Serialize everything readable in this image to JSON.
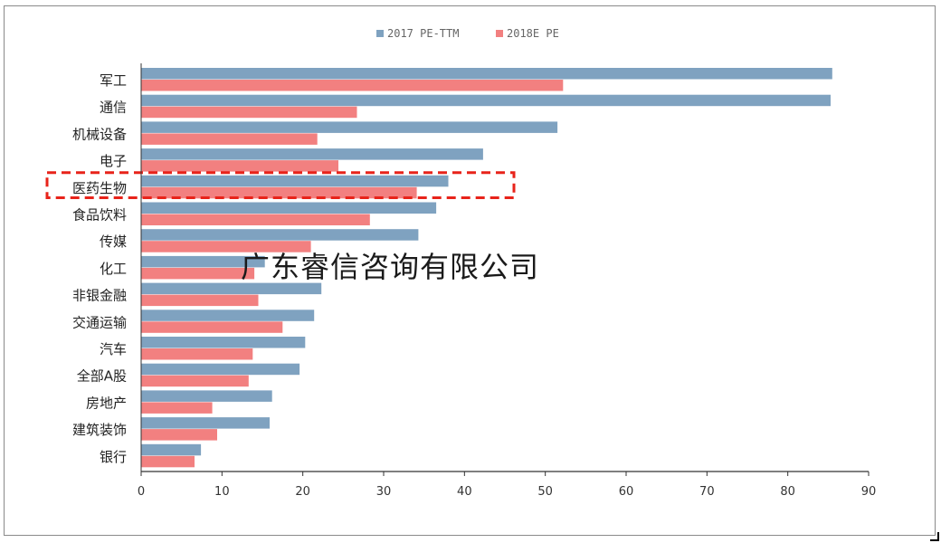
{
  "colors": {
    "series_2017": "#7fa2c0",
    "series_2018": "#f28080",
    "highlight": "#e8231a",
    "axis": "#333333"
  },
  "watermark": "广东睿信咨询有限公司",
  "chart_data": {
    "type": "bar",
    "orientation": "horizontal",
    "categories": [
      "军工",
      "通信",
      "机械设备",
      "电子",
      "医药生物",
      "食品饮料",
      "传媒",
      "化工",
      "非银金融",
      "交通运输",
      "汽车",
      "全部A股",
      "房地产",
      "建筑装饰",
      "银行"
    ],
    "series": [
      {
        "name": "2017 PE-TTM",
        "values": [
          85.5,
          85.3,
          51.5,
          42.3,
          38.0,
          36.5,
          34.3,
          15.3,
          22.3,
          21.4,
          20.3,
          19.6,
          16.2,
          15.9,
          7.4
        ]
      },
      {
        "name": "2018E PE",
        "values": [
          52.2,
          26.7,
          21.8,
          24.4,
          34.1,
          28.3,
          21.0,
          14.0,
          14.5,
          17.5,
          13.8,
          13.3,
          8.8,
          9.4,
          6.6
        ]
      }
    ],
    "xlim": [
      0,
      90
    ],
    "xticks": [
      0,
      10,
      20,
      30,
      40,
      50,
      60,
      70,
      80,
      90
    ],
    "legend_position": "top-center",
    "highlighted_category": "医药生物"
  }
}
